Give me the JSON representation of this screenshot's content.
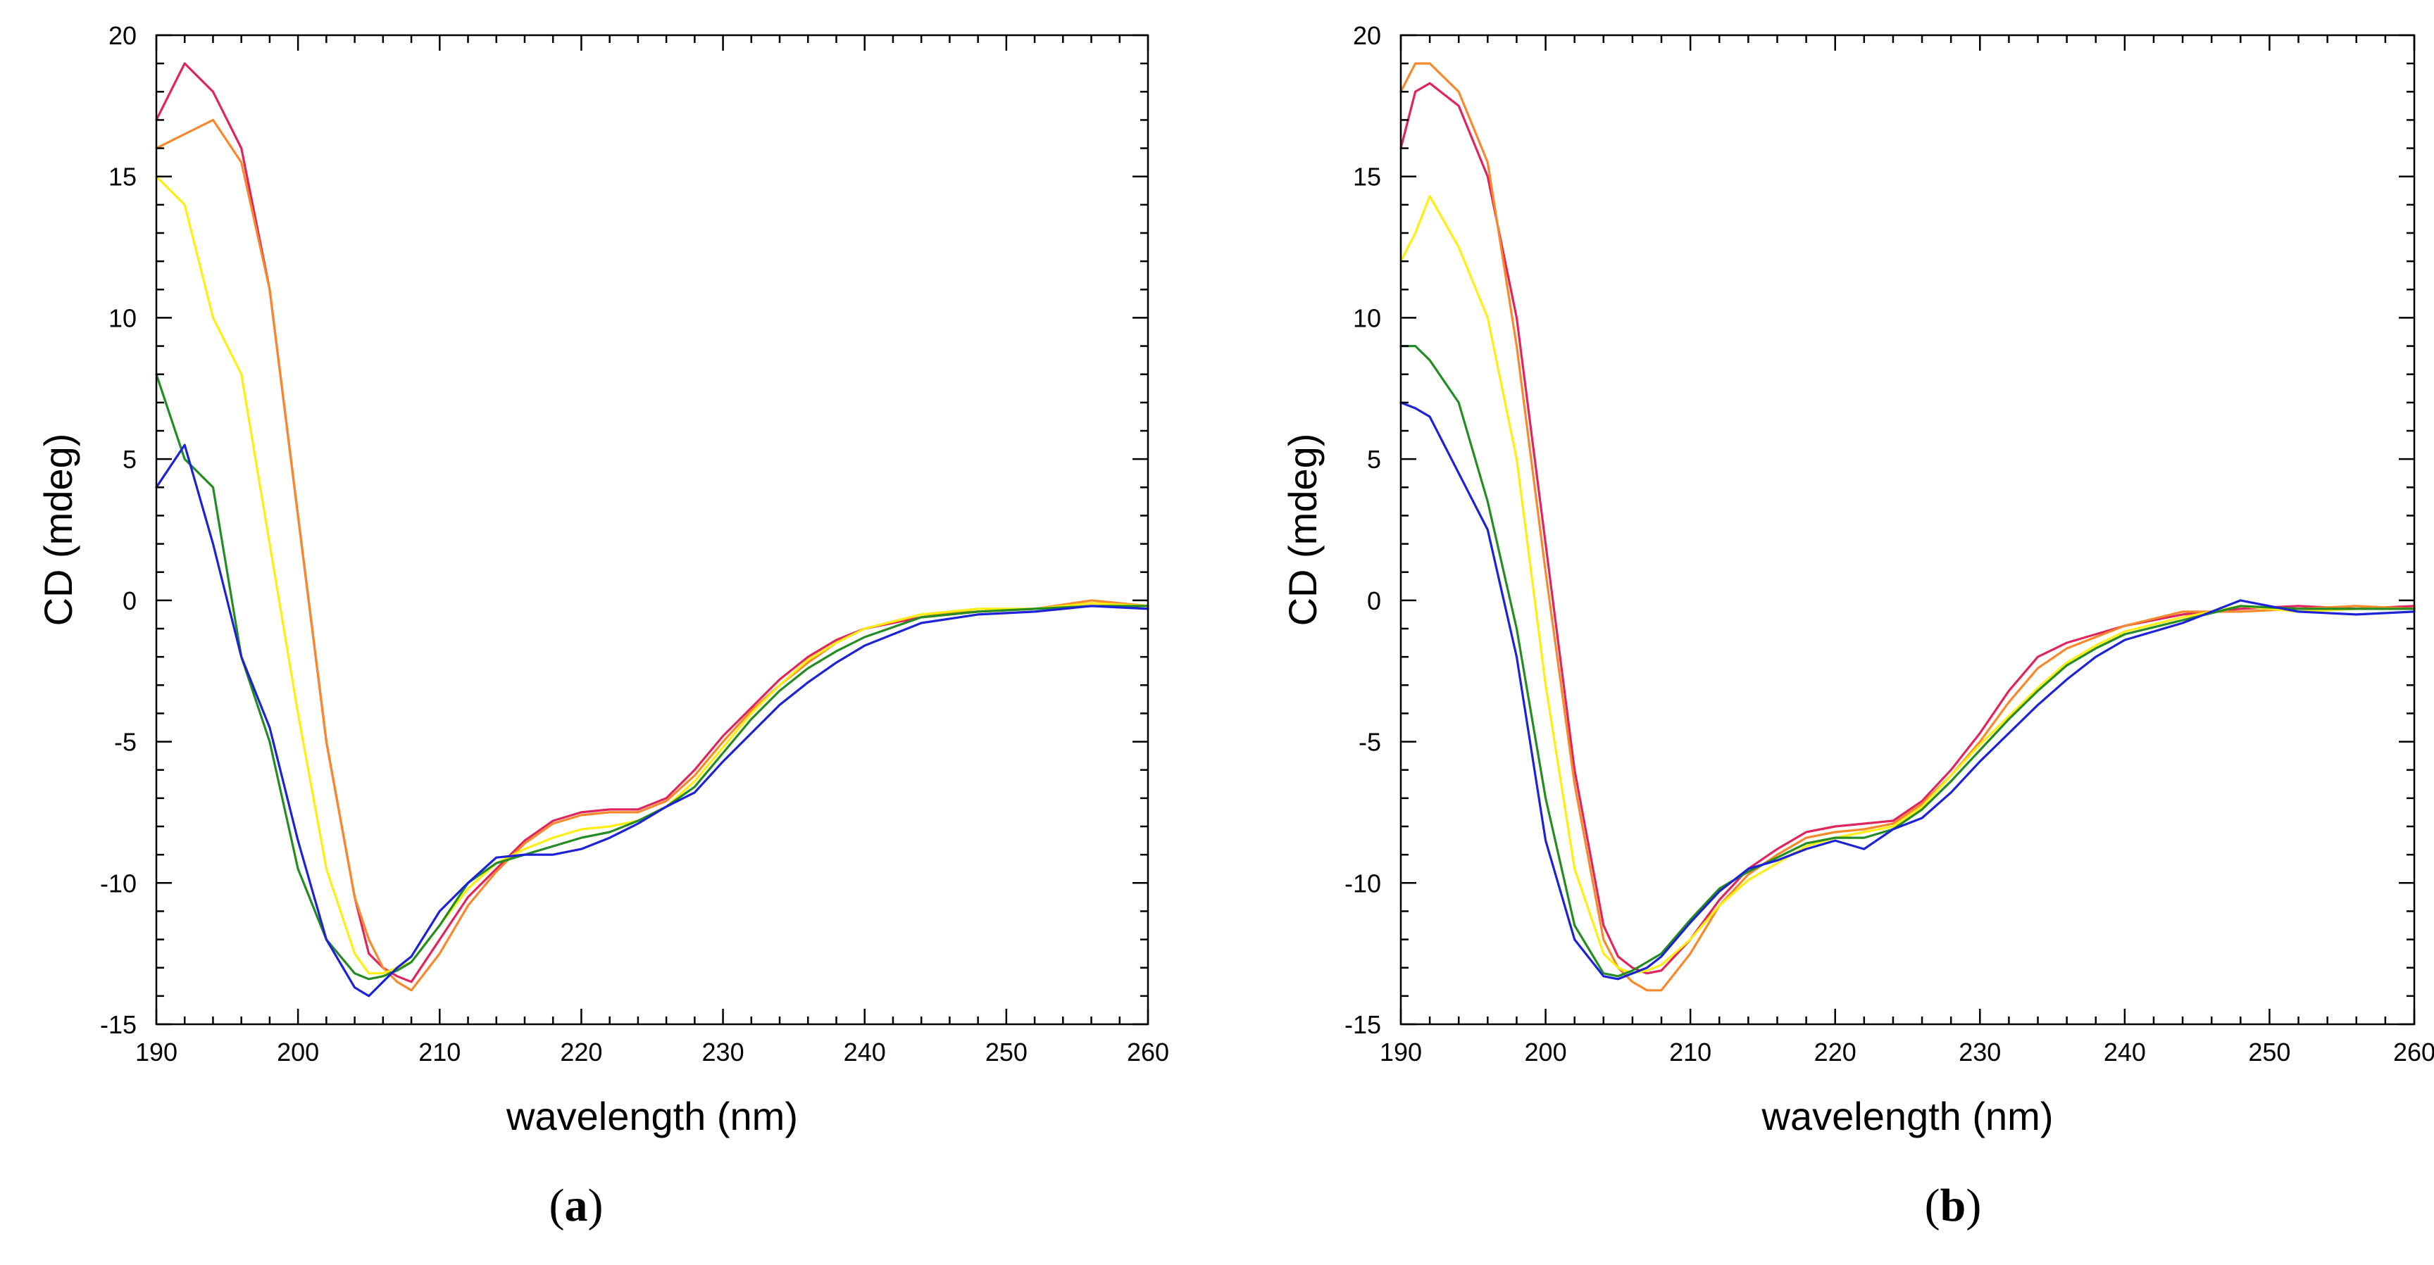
{
  "colors": {
    "crimson": "#e0245e",
    "orange": "#f7892a",
    "yellow": "#ffee11",
    "green": "#238c23",
    "blue": "#1c22d6"
  },
  "panels": [
    {
      "label_open": "(",
      "label_letter": "a",
      "label_close": ")"
    },
    {
      "label_open": "(",
      "label_letter": "b",
      "label_close": ")"
    }
  ],
  "chart_data": [
    {
      "type": "line",
      "panel": "a",
      "title": "",
      "xlabel": "wavelength (nm)",
      "ylabel": "CD (mdeg)",
      "xlim": [
        190,
        260
      ],
      "ylim": [
        -15,
        20
      ],
      "xticks": [
        190,
        200,
        210,
        220,
        230,
        240,
        250,
        260
      ],
      "yticks": [
        -15,
        -10,
        -5,
        0,
        5,
        10,
        15,
        20
      ],
      "grid": false,
      "x": [
        190,
        192,
        194,
        196,
        198,
        200,
        202,
        204,
        205,
        206,
        207,
        208,
        210,
        212,
        214,
        216,
        218,
        220,
        222,
        224,
        226,
        228,
        230,
        232,
        234,
        236,
        238,
        240,
        244,
        248,
        252,
        256,
        260
      ],
      "series": [
        {
          "color_key": "crimson",
          "values": [
            17.0,
            19.0,
            18.0,
            16.0,
            11.0,
            3.0,
            -5.0,
            -10.5,
            -12.5,
            -13.0,
            -13.3,
            -13.5,
            -12.0,
            -10.5,
            -9.5,
            -8.5,
            -7.8,
            -7.5,
            -7.4,
            -7.4,
            -7.0,
            -6.0,
            -4.8,
            -3.8,
            -2.8,
            -2.0,
            -1.4,
            -1.0,
            -0.6,
            -0.4,
            -0.3,
            -0.1,
            -0.2
          ]
        },
        {
          "color_key": "orange",
          "values": [
            16.0,
            16.5,
            17.0,
            15.5,
            11.0,
            3.0,
            -5.0,
            -10.5,
            -12.0,
            -13.0,
            -13.5,
            -13.8,
            -12.5,
            -10.8,
            -9.6,
            -8.6,
            -7.9,
            -7.6,
            -7.5,
            -7.5,
            -7.1,
            -6.2,
            -5.0,
            -3.9,
            -3.0,
            -2.2,
            -1.5,
            -1.0,
            -0.5,
            -0.4,
            -0.3,
            0.0,
            -0.2
          ]
        },
        {
          "color_key": "yellow",
          "values": [
            15.0,
            14.0,
            10.0,
            8.0,
            2.0,
            -4.0,
            -9.5,
            -12.5,
            -13.2,
            -13.2,
            -13.0,
            -12.8,
            -11.5,
            -10.2,
            -9.3,
            -8.8,
            -8.4,
            -8.1,
            -8.0,
            -7.8,
            -7.3,
            -6.4,
            -5.2,
            -4.0,
            -3.0,
            -2.1,
            -1.5,
            -1.0,
            -0.5,
            -0.3,
            -0.3,
            -0.1,
            -0.2
          ]
        },
        {
          "color_key": "green",
          "values": [
            8.0,
            5.0,
            4.0,
            -2.0,
            -5.0,
            -9.5,
            -12.0,
            -13.2,
            -13.4,
            -13.3,
            -13.1,
            -12.8,
            -11.5,
            -10.0,
            -9.3,
            -9.0,
            -8.7,
            -8.4,
            -8.2,
            -7.8,
            -7.3,
            -6.6,
            -5.4,
            -4.2,
            -3.2,
            -2.4,
            -1.8,
            -1.3,
            -0.6,
            -0.4,
            -0.3,
            -0.2,
            -0.2
          ]
        },
        {
          "color_key": "blue",
          "values": [
            4.0,
            5.5,
            2.0,
            -2.0,
            -4.5,
            -8.5,
            -12.0,
            -13.7,
            -14.0,
            -13.5,
            -13.0,
            -12.6,
            -11.0,
            -10.0,
            -9.1,
            -9.0,
            -9.0,
            -8.8,
            -8.4,
            -7.9,
            -7.3,
            -6.8,
            -5.7,
            -4.7,
            -3.7,
            -2.9,
            -2.2,
            -1.6,
            -0.8,
            -0.5,
            -0.4,
            -0.2,
            -0.3
          ]
        }
      ]
    },
    {
      "type": "line",
      "panel": "b",
      "title": "",
      "xlabel": "wavelength (nm)",
      "ylabel": "CD (mdeg)",
      "xlim": [
        190,
        260
      ],
      "ylim": [
        -15,
        20
      ],
      "xticks": [
        190,
        200,
        210,
        220,
        230,
        240,
        250,
        260
      ],
      "yticks": [
        -15,
        -10,
        -5,
        0,
        5,
        10,
        15,
        20
      ],
      "grid": false,
      "x": [
        190,
        191,
        192,
        194,
        196,
        198,
        200,
        202,
        204,
        205,
        206,
        207,
        208,
        210,
        212,
        214,
        216,
        218,
        220,
        222,
        224,
        226,
        228,
        230,
        232,
        234,
        236,
        238,
        240,
        244,
        248,
        252,
        256,
        260
      ],
      "series": [
        {
          "color_key": "crimson",
          "values": [
            16.0,
            18.0,
            18.3,
            17.5,
            15.0,
            10.0,
            2.0,
            -6.0,
            -11.5,
            -12.6,
            -13.0,
            -13.2,
            -13.1,
            -12.0,
            -10.6,
            -9.5,
            -8.8,
            -8.2,
            -8.0,
            -7.9,
            -7.8,
            -7.1,
            -6.0,
            -4.7,
            -3.2,
            -2.0,
            -1.5,
            -1.2,
            -0.9,
            -0.5,
            -0.3,
            -0.2,
            -0.3,
            -0.2
          ]
        },
        {
          "color_key": "orange",
          "values": [
            18.0,
            19.0,
            19.0,
            18.0,
            15.5,
            9.0,
            1.0,
            -6.5,
            -12.0,
            -13.0,
            -13.5,
            -13.8,
            -13.8,
            -12.5,
            -10.8,
            -9.7,
            -9.0,
            -8.4,
            -8.2,
            -8.1,
            -7.9,
            -7.2,
            -6.2,
            -5.0,
            -3.6,
            -2.4,
            -1.7,
            -1.3,
            -0.9,
            -0.4,
            -0.4,
            -0.3,
            -0.2,
            -0.3
          ]
        },
        {
          "color_key": "yellow",
          "values": [
            12.0,
            13.0,
            14.3,
            12.5,
            10.0,
            5.0,
            -3.0,
            -9.5,
            -12.5,
            -13.0,
            -13.2,
            -13.1,
            -12.9,
            -12.0,
            -10.8,
            -9.9,
            -9.3,
            -8.7,
            -8.4,
            -8.2,
            -8.0,
            -7.3,
            -6.2,
            -5.1,
            -4.1,
            -3.1,
            -2.2,
            -1.6,
            -1.1,
            -0.6,
            -0.2,
            -0.4,
            -0.3,
            -0.3
          ]
        },
        {
          "color_key": "green",
          "values": [
            9.0,
            9.0,
            8.5,
            7.0,
            3.5,
            -1.0,
            -7.0,
            -11.5,
            -13.2,
            -13.3,
            -13.1,
            -12.8,
            -12.5,
            -11.3,
            -10.2,
            -9.6,
            -9.1,
            -8.6,
            -8.4,
            -8.4,
            -8.1,
            -7.4,
            -6.4,
            -5.3,
            -4.2,
            -3.2,
            -2.3,
            -1.7,
            -1.2,
            -0.7,
            -0.2,
            -0.3,
            -0.3,
            -0.3
          ]
        },
        {
          "color_key": "blue",
          "values": [
            7.0,
            6.8,
            6.5,
            4.5,
            2.5,
            -2.0,
            -8.5,
            -12.0,
            -13.3,
            -13.4,
            -13.2,
            -13.0,
            -12.6,
            -11.4,
            -10.3,
            -9.5,
            -9.2,
            -8.8,
            -8.5,
            -8.8,
            -8.1,
            -7.7,
            -6.8,
            -5.7,
            -4.7,
            -3.7,
            -2.8,
            -2.0,
            -1.4,
            -0.8,
            0.0,
            -0.4,
            -0.5,
            -0.4
          ]
        }
      ]
    }
  ]
}
